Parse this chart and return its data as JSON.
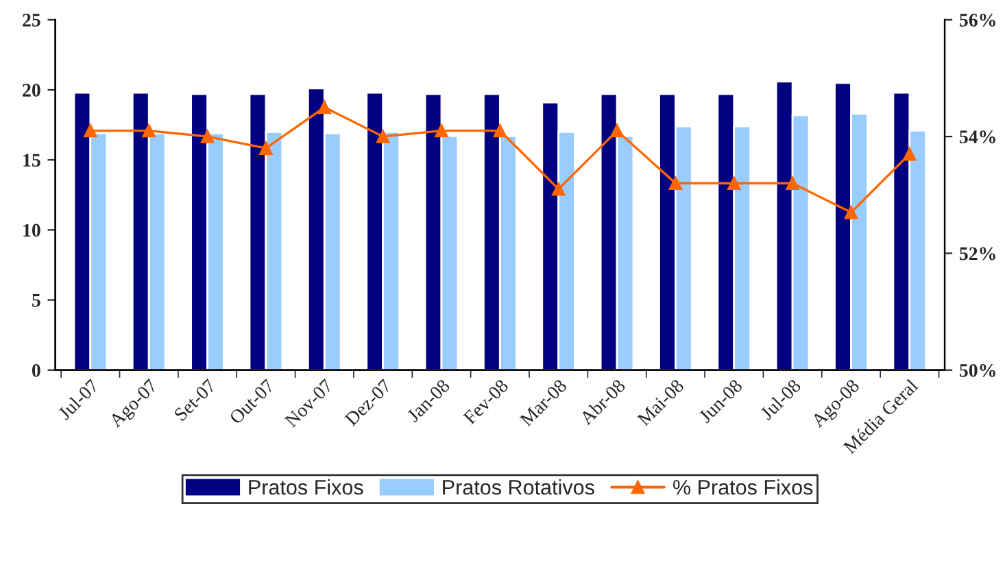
{
  "chart_data": {
    "type": "bar",
    "categories": [
      "Jul-07",
      "Ago-07",
      "Set-07",
      "Out-07",
      "Nov-07",
      "Dez-07",
      "Jan-08",
      "Fev-08",
      "Mar-08",
      "Abr-08",
      "Mai-08",
      "Jun-08",
      "Jul-08",
      "Ago-08",
      "Média Geral"
    ],
    "series": [
      {
        "name": "Pratos Fixos",
        "color": "#000080",
        "values": [
          19.8,
          19.8,
          19.7,
          19.7,
          20.1,
          19.8,
          19.7,
          19.7,
          19.1,
          19.7,
          19.7,
          19.7,
          20.6,
          20.5,
          19.8
        ]
      },
      {
        "name": "Pratos Rotativos",
        "color": "#99ccff",
        "values": [
          16.9,
          16.9,
          16.9,
          17.0,
          16.9,
          17.0,
          16.7,
          16.7,
          17.0,
          16.7,
          17.4,
          17.4,
          18.2,
          18.3,
          17.1
        ]
      },
      {
        "name": "% Pratos Fixos",
        "type": "line",
        "axis": "y2",
        "color": "#ff6600",
        "marker": "triangle",
        "values": [
          54.1,
          54.1,
          54.0,
          53.8,
          54.5,
          54.0,
          54.1,
          54.1,
          53.1,
          54.1,
          53.2,
          53.2,
          53.2,
          52.7,
          53.7
        ]
      }
    ],
    "ylim": [
      0,
      25
    ],
    "yticks": [
      0,
      5,
      10,
      15,
      20,
      25
    ],
    "y2lim": [
      50,
      56
    ],
    "y2ticks": [
      {
        "value": 50,
        "label": "50%"
      },
      {
        "value": 52,
        "label": "52%"
      },
      {
        "value": 54,
        "label": "54%"
      },
      {
        "value": 56,
        "label": "56%"
      }
    ],
    "legend": "bottom",
    "grid": false
  }
}
